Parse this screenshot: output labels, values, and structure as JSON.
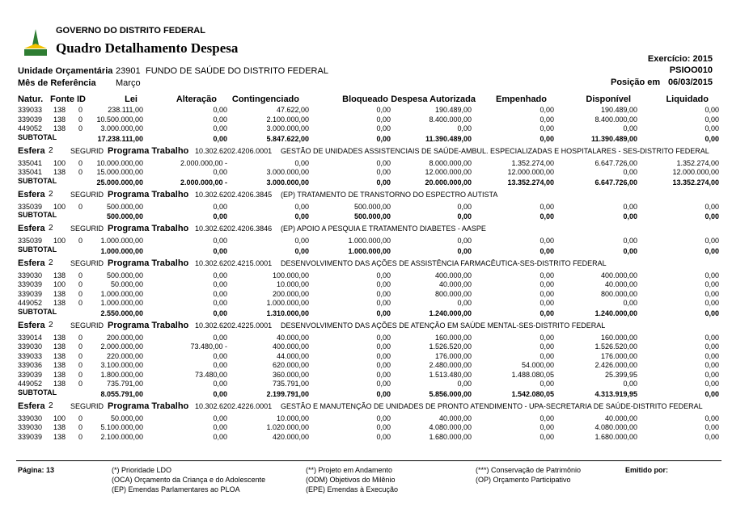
{
  "header": {
    "gov": "GOVERNO DO DISTRITO FEDERAL",
    "title": "Quadro Detalhamento Despesa",
    "exercicio": "Exercício: 2015",
    "code": "PSIOO010",
    "unidade_label": "Unidade Orçamentária",
    "unidade_code": "23901",
    "unidade_name": "FUNDO DE SAÚDE DO DISTRITO FEDERAL",
    "mes_label": "Mês de Referência",
    "mes": "Março",
    "posicao_label": "Posição em",
    "posicao": "06/03/2015"
  },
  "columns": [
    "Natur.",
    "Fonte",
    "ID",
    "Lei",
    "Alteração",
    "Contingenciado",
    "Bloqueado",
    "Despesa Autorizada",
    "Empenhado",
    "Disponível",
    "Liquidado"
  ],
  "subtotal_label": "SUBTOTAL",
  "sections": [
    {
      "rows": [
        [
          "339033",
          "138",
          "0",
          "238.111,00",
          "0,00",
          "47.622,00",
          "0,00",
          "190.489,00",
          "0,00",
          "190.489,00",
          "0,00"
        ],
        [
          "339039",
          "138",
          "0",
          "10.500.000,00",
          "0,00",
          "2.100.000,00",
          "0,00",
          "8.400.000,00",
          "0,00",
          "8.400.000,00",
          "0,00"
        ],
        [
          "449052",
          "138",
          "0",
          "3.000.000,00",
          "0,00",
          "3.000.000,00",
          "0,00",
          "0,00",
          "0,00",
          "0,00",
          "0,00"
        ]
      ],
      "subtotal": [
        "17.238.111,00",
        "0,00",
        "5.847.622,00",
        "0,00",
        "11.390.489,00",
        "0,00",
        "11.390.489,00",
        "0,00"
      ]
    },
    {
      "esfera": {
        "label": "Esfera",
        "num": "2",
        "seg": "SEGURID",
        "prog": "Programa Trabalho",
        "code": "10.302.6202.4206.0001",
        "desc": "GESTÃO DE UNIDADES ASSISTENCIAIS DE SAÚDE-AMBUL. ESPECIALIZADAS E HOSPITALARES - SES-DISTRITO FEDERAL"
      },
      "rows": [
        [
          "335041",
          "100",
          "0",
          "10.000.000,00",
          "2.000.000,00 -",
          "0,00",
          "0,00",
          "8.000.000,00",
          "1.352.274,00",
          "6.647.726,00",
          "1.352.274,00"
        ],
        [
          "335041",
          "138",
          "0",
          "15.000.000,00",
          "0,00",
          "3.000.000,00",
          "0,00",
          "12.000.000,00",
          "12.000.000,00",
          "0,00",
          "12.000.000,00"
        ]
      ],
      "subtotal": [
        "25.000.000,00",
        "2.000.000,00 -",
        "3.000.000,00",
        "0,00",
        "20.000.000,00",
        "13.352.274,00",
        "6.647.726,00",
        "13.352.274,00"
      ]
    },
    {
      "esfera": {
        "label": "Esfera",
        "num": "2",
        "seg": "SEGURID",
        "prog": "Programa Trabalho",
        "code": "10.302.6202.4206.3845",
        "desc": "(EP) TRATAMENTO DE TRANSTORNO DO ESPECTRO AUTISTA"
      },
      "rows": [
        [
          "335039",
          "100",
          "0",
          "500.000,00",
          "0,00",
          "0,00",
          "500.000,00",
          "0,00",
          "0,00",
          "0,00",
          "0,00"
        ]
      ],
      "subtotal": [
        "500.000,00",
        "0,00",
        "0,00",
        "500.000,00",
        "0,00",
        "0,00",
        "0,00",
        "0,00"
      ]
    },
    {
      "esfera": {
        "label": "Esfera",
        "num": "2",
        "seg": "SEGURID",
        "prog": "Programa Trabalho",
        "code": "10.302.6202.4206.3846",
        "desc": "(EP) APOIO A PESQUIA E TRATAMENTO DIABETES - AASPE"
      },
      "rows": [
        [
          "335039",
          "100",
          "0",
          "1.000.000,00",
          "0,00",
          "0,00",
          "1.000.000,00",
          "0,00",
          "0,00",
          "0,00",
          "0,00"
        ]
      ],
      "subtotal": [
        "1.000.000,00",
        "0,00",
        "0,00",
        "1.000.000,00",
        "0,00",
        "0,00",
        "0,00",
        "0,00"
      ]
    },
    {
      "esfera": {
        "label": "Esfera",
        "num": "2",
        "seg": "SEGURID",
        "prog": "Programa Trabalho",
        "code": "10.302.6202.4215.0001",
        "desc": "DESENVOLVIMENTO DAS AÇÕES DE ASSISTÊNCIA FARMACÊUTICA-SES-DISTRITO FEDERAL"
      },
      "rows": [
        [
          "339030",
          "138",
          "0",
          "500.000,00",
          "0,00",
          "100.000,00",
          "0,00",
          "400.000,00",
          "0,00",
          "400.000,00",
          "0,00"
        ],
        [
          "339039",
          "100",
          "0",
          "50.000,00",
          "0,00",
          "10.000,00",
          "0,00",
          "40.000,00",
          "0,00",
          "40.000,00",
          "0,00"
        ],
        [
          "339039",
          "138",
          "0",
          "1.000.000,00",
          "0,00",
          "200.000,00",
          "0,00",
          "800.000,00",
          "0,00",
          "800.000,00",
          "0,00"
        ],
        [
          "449052",
          "138",
          "0",
          "1.000.000,00",
          "0,00",
          "1.000.000,00",
          "0,00",
          "0,00",
          "0,00",
          "0,00",
          "0,00"
        ]
      ],
      "subtotal": [
        "2.550.000,00",
        "0,00",
        "1.310.000,00",
        "0,00",
        "1.240.000,00",
        "0,00",
        "1.240.000,00",
        "0,00"
      ]
    },
    {
      "esfera": {
        "label": "Esfera",
        "num": "2",
        "seg": "SEGURID",
        "prog": "Programa Trabalho",
        "code": "10.302.6202.4225.0001",
        "desc": "DESENVOLVIMENTO DAS AÇÕES DE ATENÇÃO EM SAÚDE MENTAL-SES-DISTRITO FEDERAL"
      },
      "rows": [
        [
          "339014",
          "138",
          "0",
          "200.000,00",
          "0,00",
          "40.000,00",
          "0,00",
          "160.000,00",
          "0,00",
          "160.000,00",
          "0,00"
        ],
        [
          "339030",
          "138",
          "0",
          "2.000.000,00",
          "73.480,00 -",
          "400.000,00",
          "0,00",
          "1.526.520,00",
          "0,00",
          "1.526.520,00",
          "0,00"
        ],
        [
          "339033",
          "138",
          "0",
          "220.000,00",
          "0,00",
          "44.000,00",
          "0,00",
          "176.000,00",
          "0,00",
          "176.000,00",
          "0,00"
        ],
        [
          "339036",
          "138",
          "0",
          "3.100.000,00",
          "0,00",
          "620.000,00",
          "0,00",
          "2.480.000,00",
          "54.000,00",
          "2.426.000,00",
          "0,00"
        ],
        [
          "339039",
          "138",
          "0",
          "1.800.000,00",
          "73.480,00",
          "360.000,00",
          "0,00",
          "1.513.480,00",
          "1.488.080,05",
          "25.399,95",
          "0,00"
        ],
        [
          "449052",
          "138",
          "0",
          "735.791,00",
          "0,00",
          "735.791,00",
          "0,00",
          "0,00",
          "0,00",
          "0,00",
          "0,00"
        ]
      ],
      "subtotal": [
        "8.055.791,00",
        "0,00",
        "2.199.791,00",
        "0,00",
        "5.856.000,00",
        "1.542.080,05",
        "4.313.919,95",
        "0,00"
      ]
    },
    {
      "esfera": {
        "label": "Esfera",
        "num": "2",
        "seg": "SEGURID",
        "prog": "Programa Trabalho",
        "code": "10.302.6202.4226.0001",
        "desc": "GESTÃO E MANUTENÇÃO DE UNIDADES DE PRONTO ATENDIMENTO - UPA-SECRETARIA DE SAÚDE-DISTRITO FEDERAL"
      },
      "rows": [
        [
          "339030",
          "100",
          "0",
          "50.000,00",
          "0,00",
          "10.000,00",
          "0,00",
          "40.000,00",
          "0,00",
          "40.000,00",
          "0,00"
        ],
        [
          "339030",
          "138",
          "0",
          "5.100.000,00",
          "0,00",
          "1.020.000,00",
          "0,00",
          "4.080.000,00",
          "0,00",
          "4.080.000,00",
          "0,00"
        ],
        [
          "339039",
          "138",
          "0",
          "2.100.000,00",
          "0,00",
          "420.000,00",
          "0,00",
          "1.680.000,00",
          "0,00",
          "1.680.000,00",
          "0,00"
        ]
      ]
    }
  ],
  "footer": {
    "page": "Página: 13",
    "notes": [
      [
        "(*) Prioridade LDO",
        "(OCA) Orçamento da Criança e do Adolescente",
        "(EP) Emendas Parlamentares ao PLOA"
      ],
      [
        "(**) Projeto em Andamento",
        "(ODM) Objetivos do Milênio",
        "(EPE) Emendas à Execução"
      ],
      [
        "(***) Conservação de Patrimônio",
        "(OP) Orçamento Participativo"
      ]
    ],
    "emitido": "Emitido por:"
  }
}
